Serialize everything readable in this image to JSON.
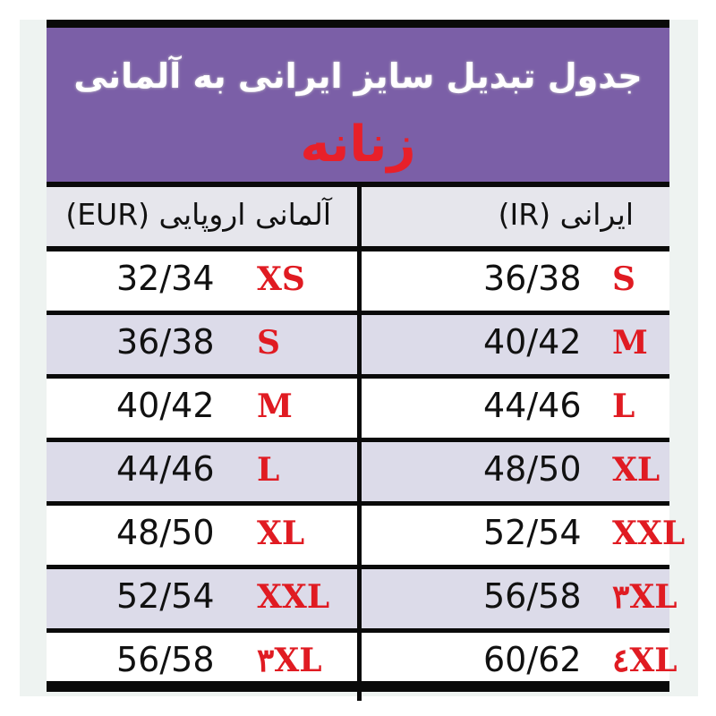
{
  "header": {
    "title": "جدول تبدیل سایز ایرانی به آلمانی",
    "subtitle": "زنانه"
  },
  "columns": {
    "german": "آلمانی اروپایی (EUR)",
    "iranian": "ایرانی (IR)"
  },
  "rows": [
    {
      "eur_num": "32/34",
      "eur_size": "XS",
      "ir_num": "36/38",
      "ir_size": "S"
    },
    {
      "eur_num": "36/38",
      "eur_size": "S",
      "ir_num": "40/42",
      "ir_size": "M"
    },
    {
      "eur_num": "40/42",
      "eur_size": "M",
      "ir_num": "44/46",
      "ir_size": "L"
    },
    {
      "eur_num": "44/46",
      "eur_size": "L",
      "ir_num": "48/50",
      "ir_size": "XL"
    },
    {
      "eur_num": "48/50",
      "eur_size": "XL",
      "ir_num": "52/54",
      "ir_size": "XXL"
    },
    {
      "eur_num": "52/54",
      "eur_size": "XXL",
      "ir_num": "56/58",
      "ir_size": "٣XL"
    },
    {
      "eur_num": "56/58",
      "eur_size": "٣XL",
      "ir_num": "60/62",
      "ir_size": "٤XL"
    }
  ],
  "colors": {
    "header_bg": "#7b5fa7",
    "accent_red": "#e01b22",
    "row_alt": "#dcdbe9",
    "row": "#ffffff"
  }
}
